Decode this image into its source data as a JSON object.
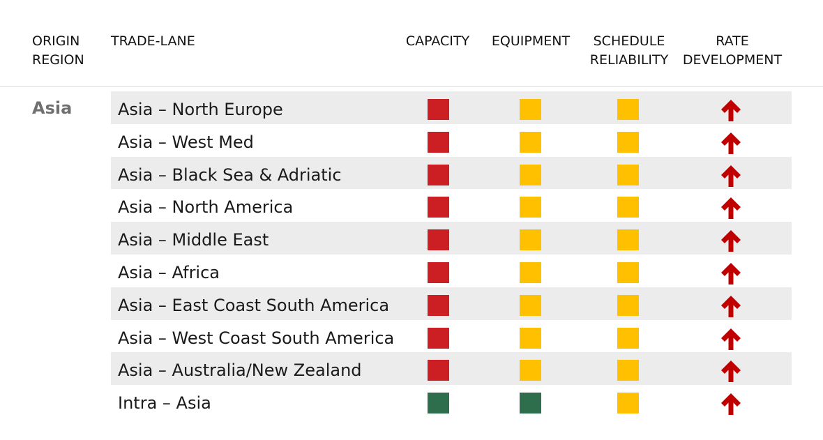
{
  "headers": {
    "origin_region": "ORIGIN\nREGION",
    "trade_lane": "TRADE-LANE",
    "capacity": "CAPACITY",
    "equipment": "EQUIPMENT",
    "schedule_reliability": "SCHEDULE\nRELIABILITY",
    "rate_development": "RATE\nDEVELOPMENT"
  },
  "region": "Asia",
  "colors": {
    "red": "#cc1f24",
    "amber": "#ffc000",
    "green": "#2e6e4c",
    "arrow": "#c00000",
    "row_shade": "#ececec"
  },
  "rows": [
    {
      "lane": "Asia – North Europe",
      "capacity": "red",
      "equipment": "amber",
      "schedule_reliability": "amber",
      "rate_development": "up-arrow"
    },
    {
      "lane": "Asia – West Med",
      "capacity": "red",
      "equipment": "amber",
      "schedule_reliability": "amber",
      "rate_development": "up-arrow"
    },
    {
      "lane": "Asia – Black Sea & Adriatic",
      "capacity": "red",
      "equipment": "amber",
      "schedule_reliability": "amber",
      "rate_development": "up-arrow"
    },
    {
      "lane": "Asia – North America",
      "capacity": "red",
      "equipment": "amber",
      "schedule_reliability": "amber",
      "rate_development": "up-arrow"
    },
    {
      "lane": "Asia – Middle East",
      "capacity": "red",
      "equipment": "amber",
      "schedule_reliability": "amber",
      "rate_development": "up-arrow"
    },
    {
      "lane": "Asia – Africa",
      "capacity": "red",
      "equipment": "amber",
      "schedule_reliability": "amber",
      "rate_development": "up-arrow"
    },
    {
      "lane": "Asia – East Coast South America",
      "capacity": "red",
      "equipment": "amber",
      "schedule_reliability": "amber",
      "rate_development": "up-arrow"
    },
    {
      "lane": "Asia – West Coast South America",
      "capacity": "red",
      "equipment": "amber",
      "schedule_reliability": "amber",
      "rate_development": "up-arrow"
    },
    {
      "lane": "Asia – Australia/New Zealand",
      "capacity": "red",
      "equipment": "amber",
      "schedule_reliability": "amber",
      "rate_development": "up-arrow"
    },
    {
      "lane": "Intra – Asia",
      "capacity": "green",
      "equipment": "green",
      "schedule_reliability": "amber",
      "rate_development": "up-arrow"
    }
  ]
}
